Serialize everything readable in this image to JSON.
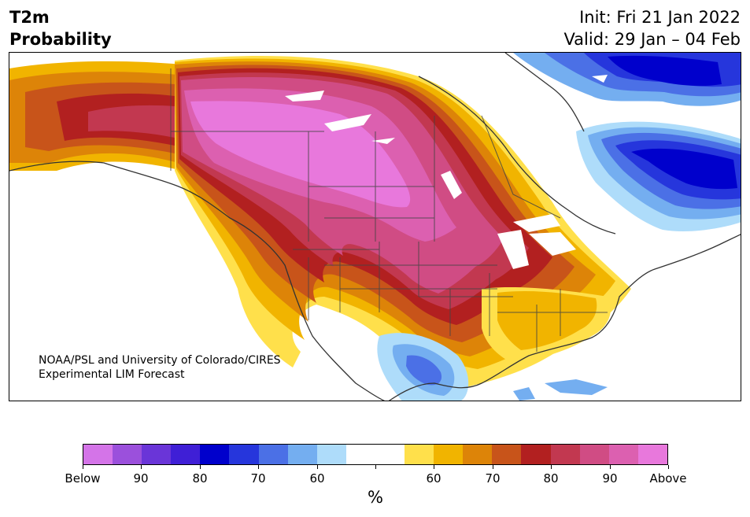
{
  "header": {
    "title_line1": "T2m",
    "title_line2": "Probability",
    "init": "Init: Fri 21 Jan 2022",
    "valid": "Valid: 29 Jan – 04 Feb"
  },
  "credit": {
    "line1": "NOAA/PSL and University of Colorado/CIRES",
    "line2": "Experimental LIM Forecast"
  },
  "colorbar": {
    "unit": "%",
    "colors": [
      "#d474e8",
      "#9b50dc",
      "#6a35d8",
      "#3f1fd6",
      "#0000cc",
      "#2636dc",
      "#4b70e6",
      "#74aef0",
      "#aedcfa",
      "#ffffff",
      "#ffffff",
      "#ffe04b",
      "#f1b400",
      "#dd8408",
      "#c8541a",
      "#b22020",
      "#c23850",
      "#d04c84",
      "#dc60b0",
      "#e878dc"
    ],
    "labels": [
      "Below",
      "90",
      "80",
      "70",
      "60",
      "",
      "60",
      "70",
      "80",
      "90",
      "Above"
    ]
  },
  "map": {
    "regions": [
      "cold-anomaly-labrador",
      "cold-anomaly-greenland",
      "cold-anomaly-mexico",
      "warm-anomaly-western-canada",
      "warm-anomaly-central-us",
      "warm-anomaly-southeast-us",
      "warm-anomaly-alaska"
    ]
  }
}
